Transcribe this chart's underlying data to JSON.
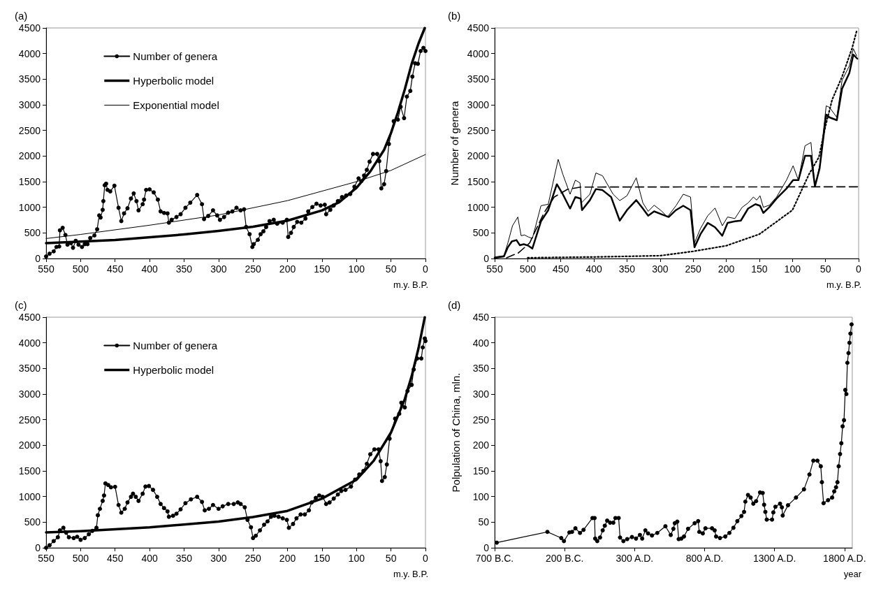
{
  "chart_data": [
    {
      "type": "line",
      "title": "(a)",
      "xlabel": "m.y. B.P.",
      "xlim": [
        550,
        0
      ],
      "xticks": [
        550,
        500,
        450,
        400,
        350,
        300,
        250,
        200,
        150,
        100,
        50,
        0
      ],
      "ylim": [
        0,
        4500
      ],
      "yticks": [
        0,
        500,
        1000,
        1500,
        2000,
        2500,
        3000,
        3500,
        4000,
        4500
      ],
      "legend": "top left",
      "series": [
        {
          "name": "Number of genera",
          "color": "#000000",
          "marker": "circle",
          "x": [
            550,
            545,
            539,
            535,
            531,
            530,
            526,
            522,
            519,
            514,
            511,
            507,
            503,
            498,
            494,
            490,
            486,
            480,
            476,
            473,
            471,
            468,
            467,
            465,
            463,
            461,
            457,
            451,
            445,
            441,
            437,
            432,
            427,
            423,
            419,
            416,
            410,
            408,
            405,
            400,
            394,
            388,
            384,
            379,
            374,
            372,
            368,
            361,
            355,
            348,
            341,
            331,
            324,
            321,
            315,
            308,
            302,
            298,
            292,
            286,
            280,
            274,
            268,
            263,
            260,
            255,
            251,
            249,
            243,
            239,
            235,
            231,
            226,
            220,
            215,
            207,
            201,
            199,
            195,
            191,
            186,
            180,
            174,
            170,
            164,
            158,
            152,
            146,
            144,
            138,
            133,
            127,
            121,
            115,
            109,
            103,
            97,
            93,
            89,
            85,
            81,
            76,
            70,
            67,
            64,
            60,
            57,
            53,
            46,
            40,
            36,
            31,
            27,
            22,
            19,
            15,
            11,
            7,
            3,
            0
          ],
          "values": [
            40,
            95,
            140,
            225,
            235,
            550,
            600,
            460,
            270,
            300,
            210,
            345,
            270,
            225,
            280,
            280,
            400,
            450,
            570,
            840,
            800,
            950,
            1120,
            1430,
            1460,
            1340,
            1310,
            1420,
            990,
            730,
            880,
            980,
            1170,
            1270,
            1120,
            940,
            1060,
            1150,
            1340,
            1350,
            1290,
            1150,
            920,
            890,
            880,
            700,
            755,
            810,
            865,
            990,
            1090,
            1240,
            1060,
            770,
            830,
            940,
            840,
            755,
            810,
            895,
            920,
            990,
            940,
            960,
            615,
            475,
            225,
            280,
            365,
            475,
            530,
            615,
            730,
            755,
            680,
            700,
            755,
            420,
            500,
            615,
            715,
            700,
            780,
            920,
            1005,
            1070,
            1035,
            1050,
            865,
            950,
            1035,
            1120,
            1200,
            1230,
            1260,
            1400,
            1565,
            1510,
            1620,
            1730,
            1890,
            2040,
            2040,
            1900,
            1370,
            1450,
            1705,
            2235,
            2680,
            2710,
            2960,
            2740,
            3160,
            3270,
            3550,
            3810,
            3800,
            4050,
            4110,
            4050
          ]
        },
        {
          "name": "Hyperbolic model",
          "color": "#000000",
          "marker": "none",
          "x": [
            550,
            450,
            350,
            300,
            250,
            200,
            150,
            125,
            100,
            80,
            60,
            50,
            40,
            30,
            20,
            10,
            1
          ],
          "values": [
            300,
            360,
            470,
            540,
            620,
            740,
            940,
            1100,
            1380,
            1700,
            2120,
            2450,
            2850,
            3300,
            3800,
            4200,
            4500
          ]
        },
        {
          "name": "Exponential model",
          "color": "#000000",
          "marker": "none",
          "x": [
            550,
            500,
            400,
            300,
            200,
            100,
            50,
            0
          ],
          "values": [
            390,
            470,
            650,
            850,
            1130,
            1500,
            1720,
            2030
          ]
        }
      ]
    },
    {
      "type": "line",
      "title": "(b)",
      "xlabel": "m.y. B.P.",
      "ylabel": "Number of genera",
      "xlim": [
        550,
        0
      ],
      "xticks": [
        550,
        500,
        450,
        400,
        350,
        300,
        250,
        200,
        150,
        100,
        50,
        0
      ],
      "ylim": [
        0,
        4500
      ],
      "yticks": [
        0,
        500,
        1000,
        1500,
        2000,
        2500,
        3000,
        3500,
        4000,
        4500
      ],
      "series": [
        {
          "color": "#000000",
          "marker": "none",
          "line_style": "solid",
          "x": [
            550,
            536,
            530,
            523,
            515,
            510,
            505,
            499,
            493,
            480,
            469,
            454,
            447,
            436,
            428,
            421,
            419,
            406,
            397,
            387,
            371,
            361,
            350,
            336,
            326,
            318,
            309,
            298,
            289,
            276,
            265,
            254,
            248,
            239,
            228,
            217,
            206,
            198,
            187,
            176,
            167,
            159,
            154,
            149,
            144,
            135,
            124,
            109,
            99,
            91,
            81,
            72,
            66,
            59,
            49,
            44,
            33,
            25,
            14,
            8,
            3
          ],
          "values": [
            30,
            55,
            305,
            640,
            810,
            445,
            460,
            420,
            390,
            1030,
            1060,
            1935,
            1645,
            1255,
            1530,
            1475,
            1085,
            1255,
            1670,
            1615,
            1255,
            1130,
            1225,
            1575,
            1085,
            920,
            1040,
            930,
            810,
            1030,
            1255,
            1200,
            305,
            585,
            835,
            985,
            640,
            810,
            780,
            1000,
            1085,
            1200,
            1140,
            1225,
            1000,
            1040,
            1200,
            1530,
            1810,
            1530,
            2200,
            2265,
            1390,
            1810,
            2980,
            2950,
            2755,
            3480,
            3760,
            4095,
            3955
          ]
        },
        {
          "color": "#000000",
          "marker": "none",
          "line_style": "solid",
          "x": [
            550,
            536,
            530,
            524,
            517,
            512,
            506,
            499,
            493,
            480,
            469,
            456,
            447,
            436,
            428,
            420,
            418,
            406,
            397,
            387,
            374,
            361,
            350,
            336,
            326,
            318,
            309,
            298,
            287,
            276,
            265,
            254,
            248,
            239,
            228,
            217,
            206,
            198,
            187,
            178,
            167,
            156,
            149,
            144,
            135,
            124,
            109,
            99,
            91,
            81,
            72,
            66,
            59,
            49,
            44,
            33,
            25,
            14,
            8,
            2
          ],
          "values": [
            15,
            40,
            220,
            335,
            360,
            260,
            280,
            250,
            195,
            725,
            945,
            1450,
            1255,
            975,
            1200,
            1170,
            945,
            1140,
            1355,
            1335,
            1200,
            740,
            945,
            1140,
            975,
            835,
            920,
            865,
            810,
            945,
            1030,
            945,
            220,
            475,
            695,
            610,
            445,
            695,
            725,
            740,
            975,
            1060,
            1030,
            890,
            1000,
            1170,
            1365,
            1530,
            1530,
            2005,
            2005,
            1410,
            1755,
            2810,
            2755,
            2700,
            3315,
            3620,
            3980,
            3900
          ]
        },
        {
          "color": "#000000",
          "marker": "none",
          "line_style": "dashed",
          "x": [
            532,
            514,
            497,
            490,
            475,
            460,
            440,
            420,
            0
          ],
          "values": [
            15,
            110,
            305,
            500,
            900,
            1200,
            1350,
            1395,
            1400
          ]
        },
        {
          "color": "#000000",
          "marker": "none",
          "line_style": "dotted",
          "x": [
            500,
            400,
            300,
            250,
            200,
            150,
            100,
            75,
            60,
            50,
            40,
            25,
            10,
            3
          ],
          "values": [
            15,
            30,
            55,
            140,
            250,
            475,
            945,
            1645,
            1980,
            2590,
            3100,
            3550,
            4100,
            4440
          ]
        }
      ]
    },
    {
      "type": "line",
      "title": "(c)",
      "xlabel": "m.y. B.P.",
      "xlim": [
        550,
        0
      ],
      "xticks": [
        550,
        500,
        450,
        400,
        350,
        300,
        250,
        200,
        150,
        100,
        50,
        0
      ],
      "ylim": [
        0,
        4500
      ],
      "yticks": [
        0,
        500,
        1000,
        1500,
        2000,
        2500,
        3000,
        3500,
        4000,
        4500
      ],
      "legend": "top left",
      "series": [
        {
          "name": "Number of genera",
          "color": "#000000",
          "marker": "circle",
          "x": [
            550,
            545,
            539,
            533,
            530,
            525,
            521,
            517,
            510,
            505,
            500,
            494,
            488,
            483,
            477,
            475,
            472,
            468,
            466,
            464,
            460,
            456,
            450,
            445,
            441,
            436,
            432,
            427,
            424,
            420,
            416,
            410,
            406,
            401,
            395,
            389,
            384,
            379,
            374,
            372,
            366,
            361,
            355,
            348,
            340,
            331,
            324,
            320,
            314,
            308,
            300,
            294,
            286,
            278,
            272,
            268,
            262,
            258,
            253,
            250,
            246,
            240,
            234,
            229,
            224,
            219,
            213,
            207,
            201,
            198,
            192,
            187,
            181,
            175,
            169,
            165,
            159,
            154,
            149,
            144,
            139,
            133,
            127,
            122,
            116,
            108,
            102,
            96,
            90,
            85,
            80,
            74,
            68,
            65,
            63,
            59,
            56,
            52,
            44,
            38,
            35,
            30,
            26,
            20,
            17,
            12,
            6,
            4,
            1,
            0
          ],
          "values": [
            0,
            50,
            130,
            205,
            340,
            390,
            295,
            205,
            190,
            215,
            155,
            190,
            265,
            330,
            390,
            635,
            760,
            915,
            1020,
            1255,
            1225,
            1180,
            1190,
            835,
            685,
            760,
            885,
            995,
            1055,
            995,
            915,
            1055,
            1195,
            1205,
            1130,
            995,
            855,
            775,
            710,
            605,
            625,
            665,
            750,
            870,
            945,
            995,
            895,
            730,
            760,
            835,
            760,
            810,
            855,
            855,
            885,
            855,
            790,
            545,
            400,
            190,
            235,
            340,
            450,
            515,
            605,
            625,
            605,
            575,
            545,
            390,
            465,
            575,
            650,
            650,
            730,
            885,
            975,
            1020,
            995,
            855,
            885,
            960,
            1040,
            1110,
            1130,
            1195,
            1330,
            1430,
            1500,
            1640,
            1825,
            1920,
            1920,
            1690,
            1305,
            1380,
            1625,
            2130,
            2520,
            2615,
            2830,
            2740,
            3060,
            3180,
            3480,
            3695,
            3695,
            3910,
            4085,
            4035
          ]
        },
        {
          "name": "Hyperbolic model",
          "color": "#000000",
          "marker": "none",
          "x": [
            550,
            500,
            400,
            300,
            250,
            200,
            150,
            100,
            75,
            50,
            30,
            20,
            10,
            1
          ],
          "values": [
            300,
            325,
            400,
            510,
            600,
            720,
            960,
            1330,
            1700,
            2250,
            2900,
            3350,
            3900,
            4500
          ]
        }
      ]
    },
    {
      "type": "line",
      "title": "(d)",
      "xlabel": "year",
      "ylabel": "Polpulation of China, mln.",
      "xlim": [
        -700,
        1855
      ],
      "xticks": [
        {
          "value": -700,
          "label": "700 B.C."
        },
        {
          "value": -200,
          "label": "200 B.C."
        },
        {
          "value": 300,
          "label": "300 A.D."
        },
        {
          "value": 800,
          "label": "800 A.D."
        },
        {
          "value": 1300,
          "label": "1300 A.D."
        },
        {
          "value": 1800,
          "label": "1800 A.D."
        }
      ],
      "ylim": [
        0,
        450
      ],
      "yticks": [
        0,
        50,
        100,
        150,
        200,
        250,
        300,
        350,
        400,
        450
      ],
      "series": [
        {
          "color": "#000000",
          "marker": "circle",
          "x": [
            -685,
            -323,
            -224,
            -205,
            -166,
            -147,
            -123,
            -90,
            -65,
            -1,
            14,
            18,
            33,
            53,
            72,
            87,
            104,
            125,
            148,
            163,
            186,
            196,
            220,
            247,
            281,
            310,
            338,
            354,
            377,
            396,
            424,
            462,
            520,
            558,
            577,
            587,
            605,
            615,
            634,
            653,
            682,
            729,
            754,
            762,
            787,
            806,
            853,
            872,
            882,
            910,
            948,
            977,
            1006,
            1034,
            1063,
            1082,
            1091,
            1110,
            1129,
            1148,
            1168,
            1196,
            1215,
            1225,
            1234,
            1244,
            1282,
            1291,
            1306,
            1339,
            1352,
            1358,
            1396,
            1453,
            1510,
            1549,
            1577,
            1606,
            1630,
            1638,
            1650,
            1682,
            1711,
            1726,
            1739,
            1749,
            1758,
            1768,
            1777,
            1786,
            1796,
            1805,
            1813,
            1820,
            1828,
            1835,
            1842,
            1850
          ],
          "values": [
            10,
            31,
            19,
            13,
            30,
            31,
            38,
            29,
            35,
            58,
            58,
            18,
            13,
            20,
            34,
            43,
            53,
            49,
            49,
            58,
            58,
            20,
            13,
            17,
            21,
            18,
            25,
            18,
            34,
            28,
            24,
            29,
            42,
            25,
            37,
            48,
            51,
            17,
            18,
            22,
            37,
            48,
            52,
            31,
            28,
            38,
            38,
            34,
            22,
            19,
            22,
            29,
            39,
            52,
            62,
            70,
            90,
            103,
            98,
            86,
            91,
            108,
            107,
            84,
            70,
            55,
            55,
            69,
            80,
            86,
            79,
            63,
            83,
            98,
            114,
            143,
            170,
            170,
            159,
            128,
            87,
            93,
            98,
            110,
            118,
            128,
            159,
            183,
            204,
            237,
            249,
            308,
            300,
            361,
            380,
            400,
            418,
            436
          ]
        }
      ]
    }
  ]
}
